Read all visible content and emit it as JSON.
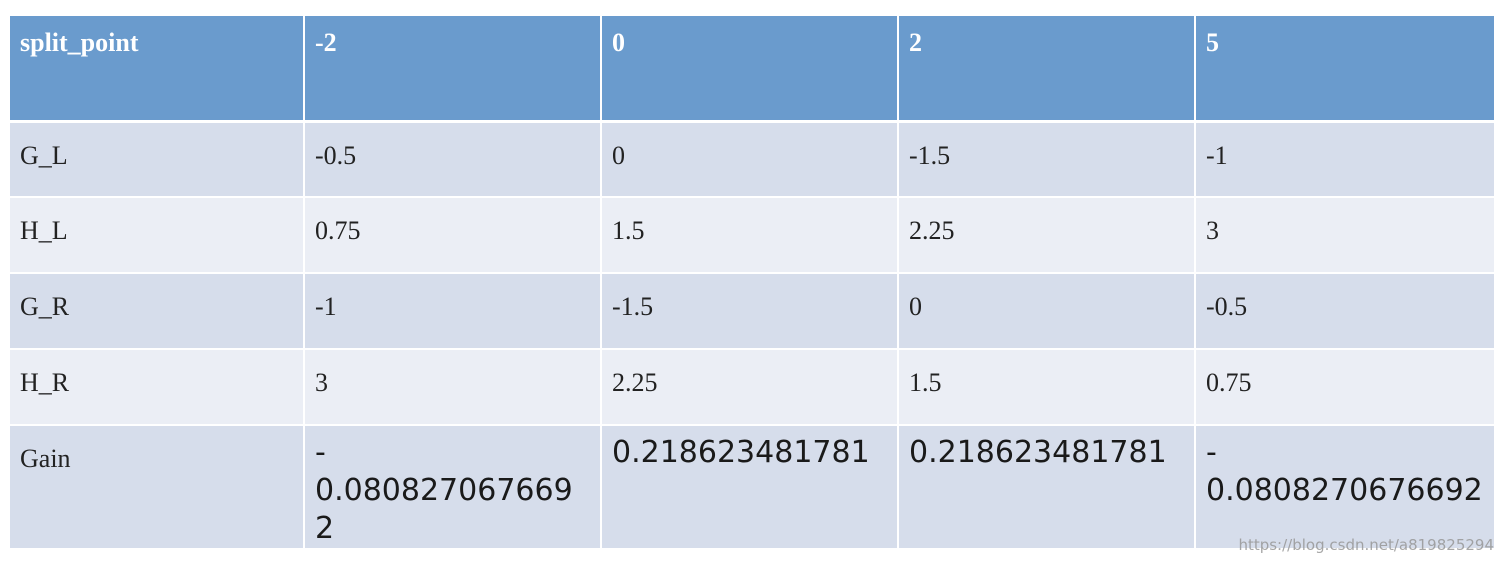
{
  "table": {
    "header": [
      "split_point",
      "-2",
      "0",
      "2",
      "5"
    ],
    "rows": [
      [
        "G_L",
        "-0.5",
        "0",
        "-1.5",
        "-1"
      ],
      [
        "H_L",
        "0.75",
        "1.5",
        "2.25",
        "3"
      ],
      [
        "G_R",
        "-1",
        "-1.5",
        "0",
        "-0.5"
      ],
      [
        "H_R",
        "3",
        "2.25",
        "1.5",
        "0.75"
      ],
      [
        "Gain",
        "-0.0808270676692",
        "0.218623481781",
        "0.218623481781",
        "-0.0808270676692"
      ]
    ]
  },
  "colors": {
    "header_bg": "#6a9bcd",
    "row_dark": "#d6ddeb",
    "row_light": "#ebeef5"
  },
  "watermark": "https://blog.csdn.net/a819825294"
}
